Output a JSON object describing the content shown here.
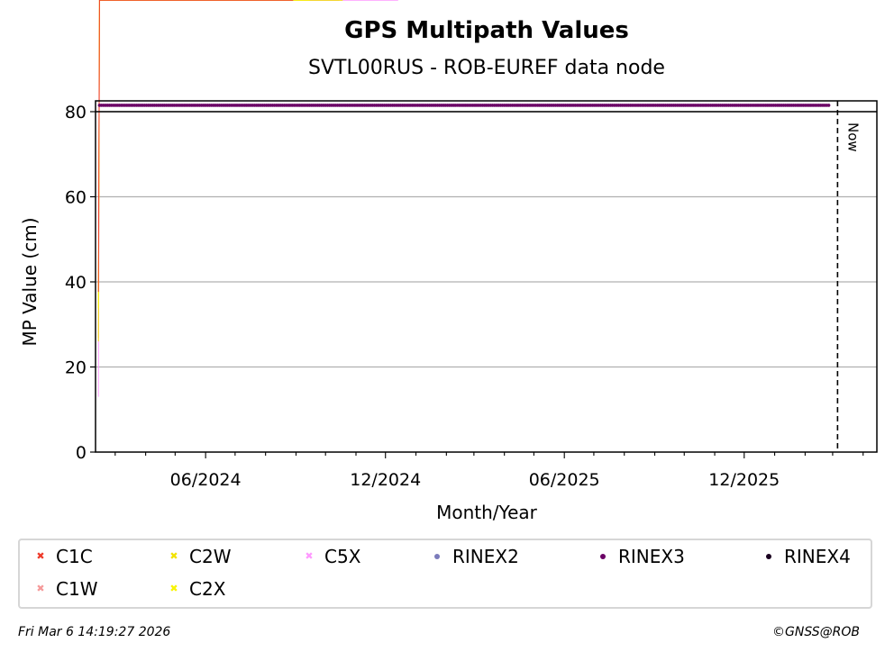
{
  "chart_data": {
    "type": "scatter",
    "title": "GPS Multipath Values",
    "subtitle": "SVTL00RUS - ROB-EUREF data node",
    "xlabel": "Month/Year",
    "ylabel": "MP Value (cm)",
    "x_ticks": [
      "06/2024",
      "12/2024",
      "06/2025",
      "12/2025"
    ],
    "y_ticks": [
      0,
      20,
      40,
      60,
      80
    ],
    "ylim": [
      0,
      80
    ],
    "xlim": [
      "2024-02-10",
      "2026-04-15"
    ],
    "grid": "horizontal",
    "now_marker": {
      "label": "Now",
      "date": "2026-03-06"
    },
    "legend_position": "bottom",
    "series": [
      {
        "name": "C1C",
        "color": "#ee3a2a",
        "marker": "x",
        "mean": 38,
        "spread": 1.2
      },
      {
        "name": "C1W",
        "color": "#f59a9a",
        "marker": "x",
        "mean": 25.5,
        "spread": 0.8
      },
      {
        "name": "C2W",
        "color": "#f2e200",
        "marker": "x",
        "mean": 26,
        "spread": 0.8
      },
      {
        "name": "C2X",
        "color": "#f8f400",
        "marker": "x",
        "mean": 34,
        "spread": 1.2
      },
      {
        "name": "C5X",
        "color": "#ff99ff",
        "marker": "x",
        "mean": 13.5,
        "spread": 1.3
      },
      {
        "name": "RINEX2",
        "color": "#7b7bbb",
        "marker": "o"
      },
      {
        "name": "RINEX3",
        "color": "#6b0065",
        "marker": "o",
        "value": 81.5
      },
      {
        "name": "RINEX4",
        "color": "#1a0020",
        "marker": "o"
      }
    ]
  },
  "footer": {
    "timestamp": "Fri Mar  6 14:19:27 2026",
    "credit": "©GNSS@ROB"
  }
}
